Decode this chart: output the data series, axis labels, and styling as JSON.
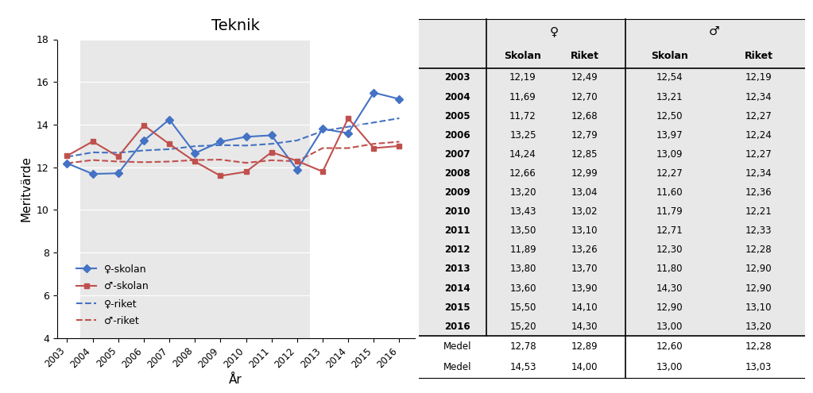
{
  "title": "Teknik",
  "years": [
    2003,
    2004,
    2005,
    2006,
    2007,
    2008,
    2009,
    2010,
    2011,
    2012,
    2013,
    2014,
    2015,
    2016
  ],
  "female_skolan": [
    12.19,
    11.69,
    11.72,
    13.25,
    14.24,
    12.66,
    13.2,
    13.43,
    13.5,
    11.89,
    13.8,
    13.6,
    15.5,
    15.2
  ],
  "female_riket": [
    12.49,
    12.7,
    12.68,
    12.79,
    12.85,
    12.99,
    13.04,
    13.02,
    13.1,
    13.26,
    13.7,
    13.9,
    14.1,
    14.3
  ],
  "male_skolan": [
    12.54,
    13.21,
    12.5,
    13.97,
    13.09,
    12.27,
    11.6,
    11.79,
    12.71,
    12.3,
    11.8,
    14.3,
    12.9,
    13.0
  ],
  "male_riket": [
    12.19,
    12.34,
    12.27,
    12.24,
    12.27,
    12.34,
    12.36,
    12.21,
    12.33,
    12.28,
    12.9,
    12.9,
    13.1,
    13.2
  ],
  "ylabel": "Meritvärde",
  "xlabel": "År",
  "ylim": [
    4,
    18
  ],
  "yticks": [
    4,
    6,
    8,
    10,
    12,
    14,
    16,
    18
  ],
  "female_skolan_color": "#4472C4",
  "male_skolan_color": "#C0504D",
  "female_riket_color": "#4472C4",
  "male_riket_color": "#C0504D",
  "medel_lpo94_female_skolan": 12.78,
  "medel_lpo94_female_riket": 12.89,
  "medel_lpo94_male_skolan": 12.6,
  "medel_lpo94_male_riket": 12.28,
  "medel_lgr11_female_skolan": 14.53,
  "medel_lgr11_female_riket": 14.0,
  "medel_lgr11_male_skolan": 13.0,
  "medel_lgr11_male_riket": 13.03,
  "bg_color": "#e8e8e8",
  "white_color": "#ffffff",
  "table_bg": "#e8e8e8"
}
